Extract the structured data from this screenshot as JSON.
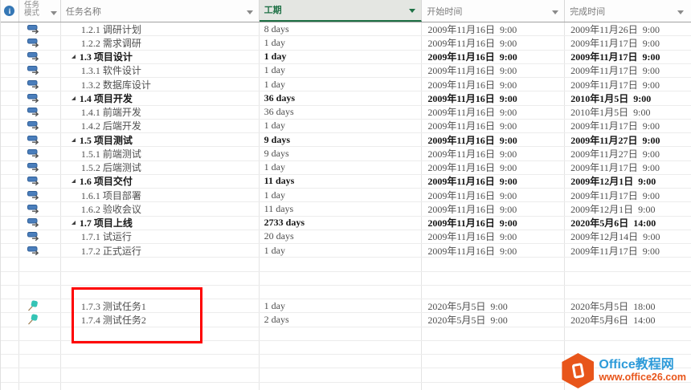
{
  "colors": {
    "accent_green": "#1E7145",
    "header_selected_bg": "#e4e6e2",
    "red_box": "#FE0000",
    "auto_icon_blue": "#4A7EBC",
    "pin_teal": "#35C4B5",
    "info_blue": "#3577B5",
    "watermark_blue": "#2E9BD9",
    "watermark_orange": "#E8551A"
  },
  "icons": {
    "info_glyph": "i",
    "info": "info-icon",
    "auto": "auto-schedule-icon",
    "manual": "pushpin-icon",
    "dropdown": "chevron-down-icon",
    "collapse": "collapse-triangle-icon"
  },
  "columns": {
    "mode_line1": "任务",
    "mode_line2": "模式",
    "name": "任务名称",
    "duration": "工期",
    "start": "开始时间",
    "finish": "完成时间"
  },
  "table": {
    "rows": [
      {
        "mode": "auto",
        "summary": false,
        "name": "1.2.1 调研计划",
        "duration": "8 days",
        "start": "2009年11月16日  9:00",
        "finish": "2009年11月26日  9:00"
      },
      {
        "mode": "auto",
        "summary": false,
        "name": "1.2.2 需求调研",
        "duration": "1 day",
        "start": "2009年11月16日  9:00",
        "finish": "2009年11月17日  9:00"
      },
      {
        "mode": "auto",
        "summary": true,
        "name": "1.3 项目设计",
        "duration": "1 day",
        "start": "2009年11月16日  9:00",
        "finish": "2009年11月17日  9:00"
      },
      {
        "mode": "auto",
        "summary": false,
        "name": "1.3.1 软件设计",
        "duration": "1 day",
        "start": "2009年11月16日  9:00",
        "finish": "2009年11月17日  9:00"
      },
      {
        "mode": "auto",
        "summary": false,
        "name": "1.3.2 数据库设计",
        "duration": "1 day",
        "start": "2009年11月16日  9:00",
        "finish": "2009年11月17日  9:00"
      },
      {
        "mode": "auto",
        "summary": true,
        "name": "1.4 项目开发",
        "duration": "36 days",
        "start": "2009年11月16日  9:00",
        "finish": "2010年1月5日  9:00"
      },
      {
        "mode": "auto",
        "summary": false,
        "name": "1.4.1 前端开发",
        "duration": "36 days",
        "start": "2009年11月16日  9:00",
        "finish": "2010年1月5日  9:00"
      },
      {
        "mode": "auto",
        "summary": false,
        "name": "1.4.2 后端开发",
        "duration": "1 day",
        "start": "2009年11月16日  9:00",
        "finish": "2009年11月17日  9:00"
      },
      {
        "mode": "auto",
        "summary": true,
        "name": "1.5 项目测试",
        "duration": "9 days",
        "start": "2009年11月16日  9:00",
        "finish": "2009年11月27日  9:00"
      },
      {
        "mode": "auto",
        "summary": false,
        "name": "1.5.1 前端测试",
        "duration": "9 days",
        "start": "2009年11月16日  9:00",
        "finish": "2009年11月27日  9:00"
      },
      {
        "mode": "auto",
        "summary": false,
        "name": "1.5.2 后端测试",
        "duration": "1 day",
        "start": "2009年11月16日  9:00",
        "finish": "2009年11月17日  9:00"
      },
      {
        "mode": "auto",
        "summary": true,
        "name": "1.6 项目交付",
        "duration": "11 days",
        "start": "2009年11月16日  9:00",
        "finish": "2009年12月1日  9:00"
      },
      {
        "mode": "auto",
        "summary": false,
        "name": "1.6.1 项目部署",
        "duration": "1 day",
        "start": "2009年11月16日  9:00",
        "finish": "2009年11月17日  9:00"
      },
      {
        "mode": "auto",
        "summary": false,
        "name": "1.6.2 验收会议",
        "duration": "11 days",
        "start": "2009年11月16日  9:00",
        "finish": "2009年12月1日  9:00"
      },
      {
        "mode": "auto",
        "summary": true,
        "name": "1.7 项目上线",
        "duration": "2733 days",
        "start": "2009年11月16日  9:00",
        "finish": "2020年5月6日  14:00"
      },
      {
        "mode": "auto",
        "summary": false,
        "name": "1.7.1 试运行",
        "duration": "20 days",
        "start": "2009年11月16日  9:00",
        "finish": "2009年12月14日  9:00"
      },
      {
        "mode": "auto",
        "summary": false,
        "name": "1.7.2 正式运行",
        "duration": "1 day",
        "start": "2009年11月16日  9:00",
        "finish": "2009年11月17日  9:00"
      },
      {
        "mode": "",
        "summary": false,
        "name": "",
        "duration": "",
        "start": "",
        "finish": ""
      },
      {
        "mode": "",
        "summary": false,
        "name": "",
        "duration": "",
        "start": "",
        "finish": ""
      },
      {
        "mode": "",
        "summary": false,
        "name": "",
        "duration": "",
        "start": "",
        "finish": ""
      },
      {
        "mode": "manual",
        "summary": false,
        "name": "1.7.3 测试任务1",
        "duration": "1 day",
        "start": "2020年5月5日  9:00",
        "finish": "2020年5月5日  18:00"
      },
      {
        "mode": "manual",
        "summary": false,
        "name": "1.7.4 测试任务2",
        "duration": "2 days",
        "start": "2020年5月5日  9:00",
        "finish": "2020年5月6日  14:00"
      },
      {
        "mode": "",
        "summary": false,
        "name": "",
        "duration": "",
        "start": "",
        "finish": ""
      },
      {
        "mode": "",
        "summary": false,
        "name": "",
        "duration": "",
        "start": "",
        "finish": ""
      },
      {
        "mode": "",
        "summary": false,
        "name": "",
        "duration": "",
        "start": "",
        "finish": ""
      },
      {
        "mode": "",
        "summary": false,
        "name": "",
        "duration": "",
        "start": "",
        "finish": ""
      },
      {
        "mode": "",
        "summary": false,
        "name": "",
        "duration": "",
        "start": "",
        "finish": ""
      }
    ]
  },
  "watermark": {
    "title": "Office教程网",
    "url": "www.office26.com"
  }
}
